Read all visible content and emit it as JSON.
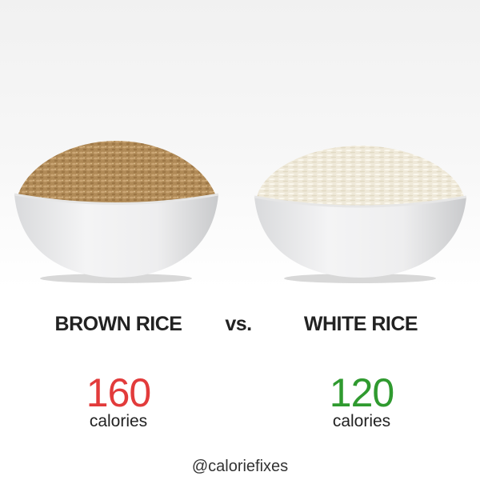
{
  "left": {
    "label": "BROWN RICE",
    "calories": 160,
    "unit": "calories"
  },
  "separator": "vs.",
  "right": {
    "label": "WHITE RICE",
    "calories": 120,
    "unit": "calories"
  },
  "handle": "@caloriefixes"
}
